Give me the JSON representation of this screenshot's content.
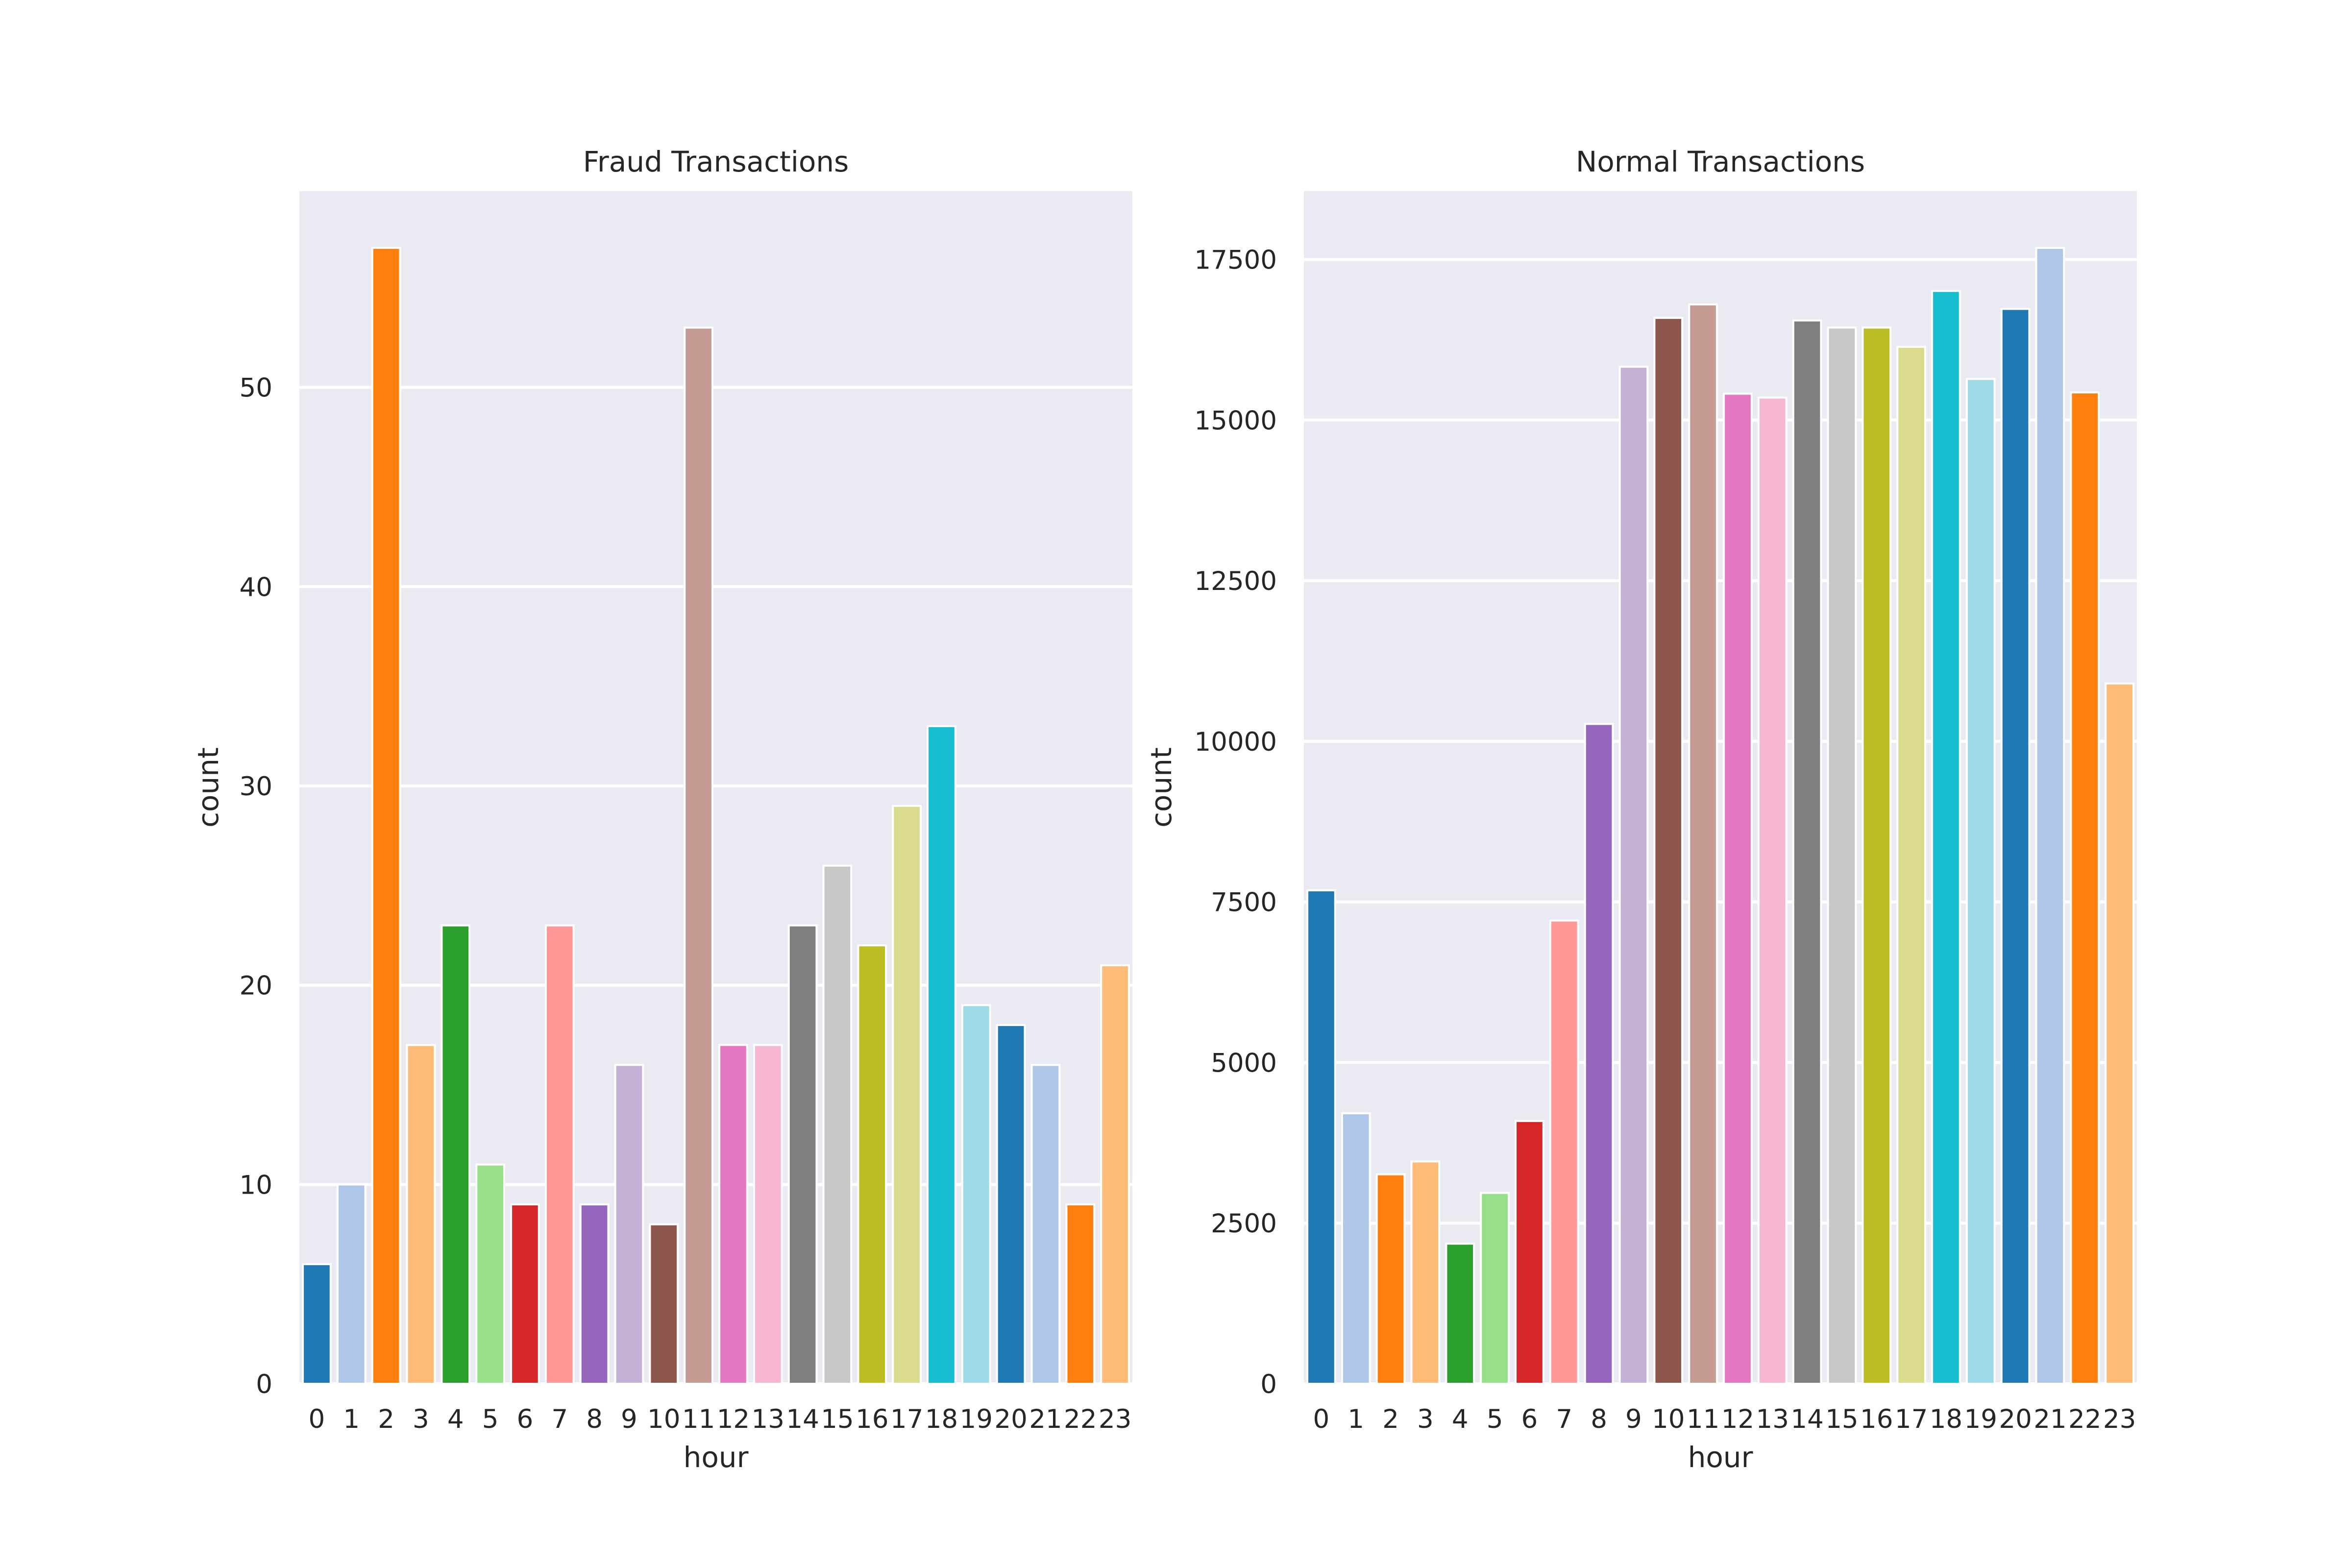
{
  "chart_data": [
    {
      "type": "bar",
      "title": "Fraud Transactions",
      "xlabel": "hour",
      "ylabel": "count",
      "categories": [
        "0",
        "1",
        "2",
        "3",
        "4",
        "5",
        "6",
        "7",
        "8",
        "9",
        "10",
        "11",
        "12",
        "13",
        "14",
        "15",
        "16",
        "17",
        "18",
        "19",
        "20",
        "21",
        "22",
        "23"
      ],
      "values": [
        6,
        10,
        57,
        17,
        23,
        11,
        9,
        23,
        9,
        16,
        8,
        53,
        17,
        17,
        23,
        26,
        22,
        29,
        33,
        19,
        18,
        16,
        9,
        21
      ],
      "ylim": [
        0,
        59.85
      ],
      "yticks": [
        0,
        10,
        20,
        30,
        40,
        50
      ],
      "ytick_labels": [
        "0",
        "10",
        "20",
        "30",
        "40",
        "50"
      ],
      "grid": true
    },
    {
      "type": "bar",
      "title": "Normal Transactions",
      "xlabel": "hour",
      "ylabel": "count",
      "categories": [
        "0",
        "1",
        "2",
        "3",
        "4",
        "5",
        "6",
        "7",
        "8",
        "9",
        "10",
        "11",
        "12",
        "13",
        "14",
        "15",
        "16",
        "17",
        "18",
        "19",
        "20",
        "21",
        "22",
        "23"
      ],
      "values": [
        7680,
        4210,
        3260,
        3460,
        2180,
        2970,
        4090,
        7210,
        10270,
        15830,
        16590,
        16800,
        15410,
        15350,
        16550,
        16440,
        16440,
        16140,
        17010,
        15640,
        16730,
        17680,
        15430,
        10900
      ],
      "ylim": [
        0,
        18564
      ],
      "yticks": [
        0,
        2500,
        5000,
        7500,
        10000,
        12500,
        15000,
        17500
      ],
      "ytick_labels": [
        "0",
        "2500",
        "5000",
        "7500",
        "10000",
        "12500",
        "15000",
        "17500"
      ],
      "grid": true
    }
  ],
  "palette": [
    "#1f77b4",
    "#aec7e8",
    "#ff7f0e",
    "#ffbb78",
    "#2ca02c",
    "#98df8a",
    "#d62728",
    "#ff9896",
    "#9467bd",
    "#c5b0d5",
    "#8c564b",
    "#c49c94",
    "#e377c2",
    "#f7b6d2",
    "#7f7f7f",
    "#c7c7c7",
    "#bcbd22",
    "#dbdb8d",
    "#17becf",
    "#9edae5",
    "#1f77b4",
    "#aec7e8",
    "#ff7f0e",
    "#ffbb78"
  ]
}
